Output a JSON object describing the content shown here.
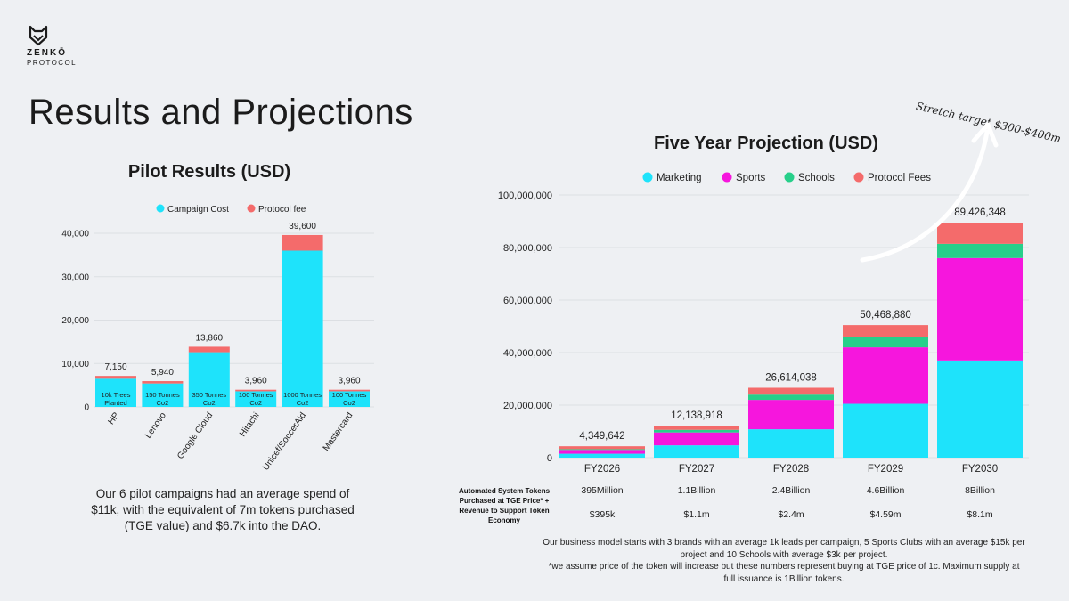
{
  "brand": {
    "line1": "ZENKŌ",
    "line2": "PROTOCOL"
  },
  "page_title": "Results and Projections",
  "stretch_note": "Stretch target $300-$400m",
  "pilot": {
    "summary": "Our 6 pilot campaigns had an average spend of $11k, with the equivalent of 7m tokens purchased (TGE value) and $6.7k into the DAO."
  },
  "projection": {
    "row_label": "Automated System Tokens Purchased at TGE Price* + Revenue to Support Token Economy",
    "tokens": [
      "395Million",
      "1.1Billion",
      "2.4Billion",
      "4.6Billion",
      "8Billion"
    ],
    "revenue": [
      "$395k",
      "$1.1m",
      "$2.4m",
      "$4.59m",
      "$8.1m"
    ],
    "footnote_lines": [
      "Our business model starts with 3 brands with an average 1k leads per campaign, 5 Sports Clubs with an average $15k per",
      "project and 10 Schools with average $3k per project.",
      "*we assume price of the token will increase but these numbers represent buying at TGE price of 1c. Maximum supply at",
      "full issuance is 1Billion tokens."
    ]
  },
  "chart_data": [
    {
      "type": "bar",
      "stacked": true,
      "title": "Pilot Results (USD)",
      "categories": [
        "HP",
        "Lenovo",
        "Google Cloud",
        "Hitachi",
        "Unicef/SoccerAid",
        "Mastercard"
      ],
      "series": [
        {
          "name": "Campaign Cost",
          "color": "#1ee3fb",
          "values": [
            6500,
            5400,
            12600,
            3600,
            36000,
            3600
          ]
        },
        {
          "name": "Protocol fee",
          "color": "#f46b6b",
          "values": [
            650,
            540,
            1260,
            360,
            3600,
            360
          ]
        }
      ],
      "totals": [
        "7,150",
        "5,940",
        "13,860",
        "3,960",
        "39,600",
        "3,960"
      ],
      "bar_labels": [
        [
          "10k Trees",
          "Planted"
        ],
        [
          "150 Tonnes",
          "Co2"
        ],
        [
          "350 Tonnes",
          "Co2"
        ],
        [
          "100 Tonnes",
          "Co2"
        ],
        [
          "1000 Tonnes",
          "Co2"
        ],
        [
          "100 Tonnes",
          "Co2"
        ]
      ],
      "y_ticks": [
        "0",
        "10,000",
        "20,000",
        "30,000",
        "40,000"
      ],
      "ylim": [
        0,
        40000
      ],
      "legend_position": "top",
      "grid": true
    },
    {
      "type": "bar",
      "stacked": true,
      "title": "Five Year Projection (USD)",
      "categories": [
        "FY2026",
        "FY2027",
        "FY2028",
        "FY2029",
        "FY2030"
      ],
      "series": [
        {
          "name": "Marketing",
          "color": "#1ee3fb",
          "values": [
            1500000,
            4700000,
            10800000,
            20500000,
            37000000
          ]
        },
        {
          "name": "Sports",
          "color": "#f616dd",
          "values": [
            1450000,
            4900000,
            11200000,
            21500000,
            39000000
          ]
        },
        {
          "name": "Schools",
          "color": "#27cf8a",
          "values": [
            300000,
            1000000,
            2000000,
            3800000,
            5400000
          ]
        },
        {
          "name": "Protocol Fees",
          "color": "#f46b6b",
          "values": [
            1099642,
            1538918,
            2614038,
            4668880,
            8026348
          ]
        }
      ],
      "totals": [
        "4,349,642",
        "12,138,918",
        "26,614,038",
        "50,468,880",
        "89,426,348"
      ],
      "y_ticks": [
        "0",
        "20,000,000",
        "40,000,000",
        "60,000,000",
        "80,000,000",
        "100,000,000"
      ],
      "ylim": [
        0,
        100000000
      ],
      "legend_position": "top",
      "grid": true
    }
  ]
}
